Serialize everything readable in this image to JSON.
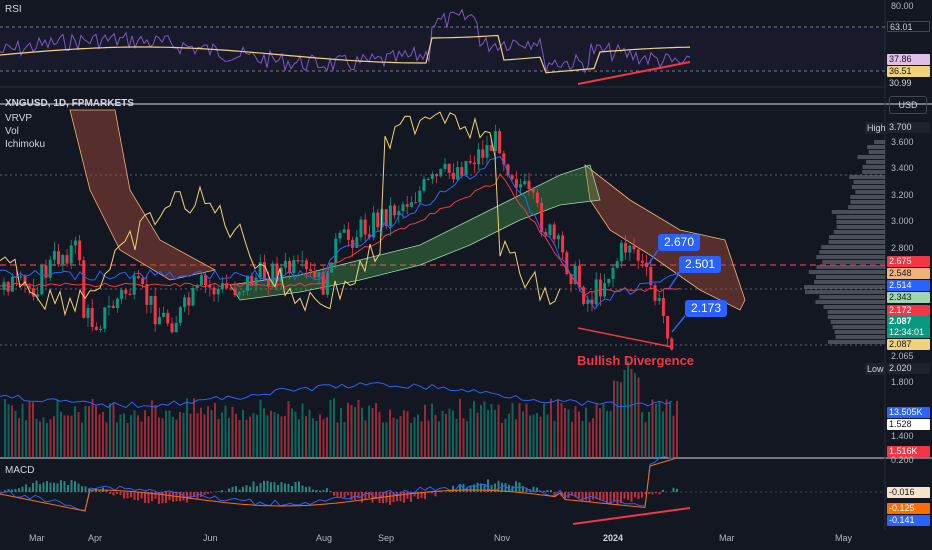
{
  "symbol": {
    "title": "XNGUSD, 1D, FPMARKETS",
    "indicators": [
      "VRVP",
      "Vol",
      "Ichimoku"
    ],
    "currency": "USD"
  },
  "rsi": {
    "label": "RSI",
    "scale": [
      "80.00",
      "63.01"
    ],
    "tags": [
      {
        "text": "37.86",
        "bg": "#e1bee7",
        "fg": "#131722"
      },
      {
        "text": "36.51",
        "bg": "#f0d27a",
        "fg": "#131722"
      },
      {
        "text": "30.99",
        "bg": "#131722",
        "fg": "#d1d4dc"
      }
    ]
  },
  "price_axis": {
    "high_label": "High",
    "high_value": "3.700",
    "low_label": "Low",
    "low_value": "2.020",
    "ticks": [
      "3.600",
      "3.400",
      "3.200",
      "3.000",
      "2.800",
      "2.065"
    ],
    "tags": [
      {
        "text": "2.675",
        "bg": "#f23645",
        "fg": "#ffffff"
      },
      {
        "text": "2.548",
        "bg": "#f0b27a",
        "fg": "#131722"
      },
      {
        "text": "2.514",
        "bg": "#2962ff",
        "fg": "#ffffff"
      },
      {
        "text": "2.343",
        "bg": "#9fd5b0",
        "fg": "#131722"
      },
      {
        "text": "2.172",
        "bg": "#f23645",
        "fg": "#ffffff"
      },
      {
        "text": "2.087",
        "bg": "#089981",
        "fg": "#ffffff"
      },
      {
        "text": "12:34:01",
        "bg": "#089981",
        "fg": "#ffffff"
      },
      {
        "text": "2.087",
        "bg": "#f0d27a",
        "fg": "#131722"
      }
    ]
  },
  "volume_axis": {
    "ticks": [
      "1.800",
      "1.528",
      "1.400"
    ],
    "tags": [
      {
        "text": "13.505K",
        "bg": "#2962ff",
        "fg": "#ffffff"
      },
      {
        "text": "1.516K",
        "bg": "#f23645",
        "fg": "#ffffff"
      }
    ]
  },
  "macd": {
    "label": "MACD",
    "scale": [
      "0.200"
    ],
    "tags": [
      {
        "text": "-0.016",
        "bg": "#f8e3c8",
        "fg": "#131722"
      },
      {
        "text": "-0.125",
        "bg": "#ff6d00",
        "fg": "#ffffff"
      },
      {
        "text": "-0.141",
        "bg": "#2962ff",
        "fg": "#ffffff"
      }
    ]
  },
  "annotations": {
    "callouts": [
      "2.670",
      "2.501",
      "2.173"
    ],
    "divergence_text": "Bullish Divergence",
    "divergence_color": "#f23645"
  },
  "time_axis": [
    "Mar",
    "Apr",
    "Jun",
    "Aug",
    "Sep",
    "Nov",
    "2024",
    "Mar",
    "May"
  ],
  "colors": {
    "background": "#131722",
    "up": "#089981",
    "down": "#f23645",
    "rsi_line": "#7e57c2",
    "rsi_ma": "#f0d27a",
    "cloud_bear": "#a84b3a",
    "cloud_bull": "#4caf50"
  }
}
